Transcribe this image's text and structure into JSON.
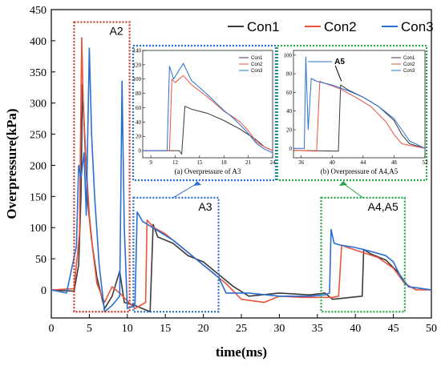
{
  "chart_data": {
    "type": "line",
    "xlabel": "time(ms)",
    "ylabel": "Overpressure(kPa)",
    "xlim": [
      0,
      50
    ],
    "ylim": [
      -45,
      450
    ],
    "x_ticks": [
      0,
      5,
      10,
      15,
      20,
      25,
      30,
      35,
      40,
      45,
      50
    ],
    "y_ticks": [
      0,
      50,
      100,
      150,
      200,
      250,
      300,
      350,
      400,
      450
    ],
    "legend_position": "top-right",
    "series": [
      {
        "name": "Con1",
        "color": "#3a3a3a",
        "points": [
          [
            0,
            0
          ],
          [
            3,
            -2
          ],
          [
            3.6,
            40
          ],
          [
            3.9,
            150
          ],
          [
            4.1,
            330
          ],
          [
            4.4,
            240
          ],
          [
            4.8,
            140
          ],
          [
            5.3,
            80
          ],
          [
            6,
            20
          ],
          [
            7,
            -30
          ],
          [
            8,
            -10
          ],
          [
            9,
            30
          ],
          [
            9.6,
            -20
          ],
          [
            11,
            -25
          ],
          [
            13,
            -35
          ],
          [
            13.4,
            105
          ],
          [
            14,
            85
          ],
          [
            16,
            75
          ],
          [
            18,
            55
          ],
          [
            20,
            45
          ],
          [
            22,
            25
          ],
          [
            24,
            5
          ],
          [
            26,
            -10
          ],
          [
            30,
            -5
          ],
          [
            34,
            -8
          ],
          [
            36,
            -5
          ],
          [
            37,
            -15
          ],
          [
            40.9,
            -10
          ],
          [
            41.1,
            65
          ],
          [
            42,
            58
          ],
          [
            44,
            48
          ],
          [
            45.5,
            30
          ],
          [
            47,
            5
          ],
          [
            50,
            0
          ]
        ]
      },
      {
        "name": "Con2",
        "color": "#e8543f",
        "points": [
          [
            0,
            0
          ],
          [
            3,
            2
          ],
          [
            3.7,
            90
          ],
          [
            4.0,
            405
          ],
          [
            4.2,
            300
          ],
          [
            4.6,
            200
          ],
          [
            5,
            120
          ],
          [
            5.5,
            60
          ],
          [
            6,
            10
          ],
          [
            7,
            -20
          ],
          [
            8,
            5
          ],
          [
            9,
            -5
          ],
          [
            11,
            -30
          ],
          [
            12.4,
            -20
          ],
          [
            12.6,
            112
          ],
          [
            13.5,
            100
          ],
          [
            15,
            90
          ],
          [
            17,
            70
          ],
          [
            19,
            50
          ],
          [
            21,
            30
          ],
          [
            23,
            10
          ],
          [
            25,
            -15
          ],
          [
            28,
            -20
          ],
          [
            30,
            -10
          ],
          [
            33,
            -12
          ],
          [
            37,
            -12
          ],
          [
            37.8,
            -10
          ],
          [
            38.2,
            72
          ],
          [
            39,
            68
          ],
          [
            41,
            60
          ],
          [
            43,
            52
          ],
          [
            45,
            35
          ],
          [
            46.5,
            10
          ],
          [
            48,
            0
          ],
          [
            50,
            0
          ]
        ]
      },
      {
        "name": "Con3",
        "color": "#2a6fd4",
        "points": [
          [
            0,
            0
          ],
          [
            2,
            -5
          ],
          [
            3.3,
            70
          ],
          [
            3.6,
            200
          ],
          [
            3.9,
            180
          ],
          [
            4.3,
            220
          ],
          [
            4.6,
            120
          ],
          [
            5.0,
            388
          ],
          [
            5.3,
            250
          ],
          [
            5.7,
            150
          ],
          [
            6.3,
            40
          ],
          [
            7,
            -35
          ],
          [
            8,
            -25
          ],
          [
            9,
            -10
          ],
          [
            9.3,
            335
          ],
          [
            9.6,
            100
          ],
          [
            10,
            -30
          ],
          [
            11,
            -25
          ],
          [
            11.3,
            125
          ],
          [
            12,
            110
          ],
          [
            14,
            95
          ],
          [
            16,
            80
          ],
          [
            18,
            60
          ],
          [
            20,
            40
          ],
          [
            22,
            20
          ],
          [
            23,
            -5
          ],
          [
            26,
            -5
          ],
          [
            30,
            -10
          ],
          [
            34,
            -10
          ],
          [
            36,
            -8
          ],
          [
            36.6,
            -5
          ],
          [
            36.8,
            97
          ],
          [
            37.2,
            75
          ],
          [
            38,
            72
          ],
          [
            40,
            68
          ],
          [
            42,
            62
          ],
          [
            44,
            55
          ],
          [
            45,
            45
          ],
          [
            46,
            20
          ],
          [
            47,
            5
          ],
          [
            50,
            0
          ]
        ]
      }
    ],
    "regions": [
      {
        "label": "A2",
        "color": "#c0392b",
        "x": [
          3,
          10.3
        ],
        "y": [
          -35,
          430
        ]
      },
      {
        "label": "A3",
        "color": "#2a6fd4",
        "x": [
          10.8,
          22
        ],
        "y": [
          -35,
          148
        ]
      },
      {
        "label": "A4,A5",
        "color": "#27a34a",
        "x": [
          35.5,
          46.5
        ],
        "y": [
          -35,
          148
        ]
      }
    ],
    "insets": [
      {
        "caption": "(a) Overpressure of A3",
        "border_color": "#2a6fd4",
        "xlim": [
          8,
          24
        ],
        "ylim": [
          -10,
          140
        ],
        "x_ticks": [
          9,
          12,
          15,
          18,
          21,
          24
        ],
        "y_ticks": [
          0,
          20,
          40,
          60,
          80,
          100,
          120,
          140
        ],
        "series": [
          {
            "name": "Con1",
            "color": "#3a3a3a",
            "points": [
              [
                8,
                0
              ],
              [
                10,
                0
              ],
              [
                12.5,
                0
              ],
              [
                12.8,
                -5
              ],
              [
                13.2,
                62
              ],
              [
                14,
                58
              ],
              [
                16,
                52
              ],
              [
                18,
                42
              ],
              [
                20,
                30
              ],
              [
                22,
                15
              ],
              [
                23,
                5
              ],
              [
                24,
                0
              ]
            ]
          },
          {
            "name": "Con2",
            "color": "#e8543f",
            "points": [
              [
                8,
                0
              ],
              [
                10,
                0
              ],
              [
                11.3,
                0
              ],
              [
                11.6,
                100
              ],
              [
                12,
                95
              ],
              [
                13,
                105
              ],
              [
                14,
                92
              ],
              [
                16,
                75
              ],
              [
                18,
                55
              ],
              [
                19,
                48
              ],
              [
                20,
                40
              ],
              [
                21,
                28
              ],
              [
                22,
                12
              ],
              [
                23,
                5
              ],
              [
                24,
                0
              ]
            ]
          },
          {
            "name": "Con3",
            "color": "#2a6fd4",
            "points": [
              [
                8,
                0
              ],
              [
                10,
                0
              ],
              [
                11.0,
                0
              ],
              [
                11.3,
                118
              ],
              [
                11.8,
                100
              ],
              [
                13,
                122
              ],
              [
                14,
                98
              ],
              [
                16,
                78
              ],
              [
                18,
                56
              ],
              [
                19,
                47
              ],
              [
                20,
                36
              ],
              [
                21,
                24
              ],
              [
                22,
                10
              ],
              [
                23,
                2
              ],
              [
                24,
                -3
              ]
            ]
          }
        ]
      },
      {
        "caption": "(b) Overpressure of A4,A5",
        "border_color": "#27a34a",
        "xlim": [
          35,
          52
        ],
        "ylim": [
          -10,
          105
        ],
        "x_ticks": [
          36,
          40,
          44,
          48,
          52
        ],
        "y_ticks": [
          0,
          20,
          40,
          60,
          80,
          100
        ],
        "annotation": "A5",
        "series": [
          {
            "name": "Con1",
            "color": "#3a3a3a",
            "points": [
              [
                35,
                -2
              ],
              [
                40.8,
                -3
              ],
              [
                41.1,
                68
              ],
              [
                42,
                63
              ],
              [
                44,
                55
              ],
              [
                46,
                45
              ],
              [
                48,
                30
              ],
              [
                49,
                15
              ],
              [
                50,
                5
              ],
              [
                52,
                0
              ]
            ]
          },
          {
            "name": "Con2",
            "color": "#e8543f",
            "points": [
              [
                35,
                -2
              ],
              [
                38,
                -3
              ],
              [
                38.4,
                72
              ],
              [
                39,
                70
              ],
              [
                41,
                64
              ],
              [
                43,
                55
              ],
              [
                45,
                45
              ],
              [
                47,
                28
              ],
              [
                48,
                15
              ],
              [
                49,
                5
              ],
              [
                52,
                0
              ]
            ]
          },
          {
            "name": "Con3",
            "color": "#2a6fd4",
            "points": [
              [
                35,
                0
              ],
              [
                36.4,
                0
              ],
              [
                36.6,
                98
              ],
              [
                36.9,
                20
              ],
              [
                37.3,
                75
              ],
              [
                38,
                72
              ],
              [
                40,
                68
              ],
              [
                42,
                62
              ],
              [
                44,
                55
              ],
              [
                46,
                45
              ],
              [
                48,
                32
              ],
              [
                49,
                20
              ],
              [
                50,
                8
              ],
              [
                52,
                0
              ]
            ]
          }
        ]
      }
    ]
  }
}
